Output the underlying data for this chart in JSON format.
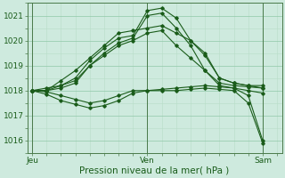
{
  "bg_color": "#ceeade",
  "line_color": "#1a5c1a",
  "title": "Pression niveau de la mer( hPa )",
  "xlabel_day_labels": [
    "Jeu",
    "Ven",
    "Sam"
  ],
  "xlabel_day_positions": [
    0,
    24,
    48
  ],
  "ylim": [
    1015.5,
    1021.5
  ],
  "yticks": [
    1016,
    1017,
    1018,
    1019,
    1020,
    1021
  ],
  "xlim": [
    -1,
    52
  ],
  "lines": [
    {
      "x": [
        0,
        3,
        6,
        9,
        12,
        15,
        18,
        21,
        24,
        27,
        30,
        33,
        36,
        39,
        42,
        45,
        48
      ],
      "y": [
        1018.0,
        1018.1,
        1018.2,
        1018.5,
        1019.2,
        1019.7,
        1020.1,
        1020.2,
        1021.2,
        1021.3,
        1020.9,
        1020.0,
        1019.4,
        1018.5,
        1018.3,
        1018.2,
        1018.1
      ]
    },
    {
      "x": [
        0,
        3,
        6,
        9,
        12,
        15,
        18,
        21,
        24,
        27,
        30,
        33,
        36,
        39,
        42,
        45,
        48
      ],
      "y": [
        1018.0,
        1018.0,
        1018.1,
        1018.3,
        1019.0,
        1019.5,
        1019.9,
        1020.1,
        1021.0,
        1021.1,
        1020.5,
        1019.8,
        1018.8,
        1018.2,
        1018.1,
        1018.0,
        1017.9
      ]
    },
    {
      "x": [
        0,
        3,
        6,
        9,
        12,
        15,
        18,
        21,
        24,
        27,
        30,
        33,
        36,
        39,
        42,
        45,
        48
      ],
      "y": [
        1018.0,
        1017.95,
        1017.8,
        1017.65,
        1017.5,
        1017.6,
        1017.8,
        1018.0,
        1018.0,
        1018.05,
        1018.1,
        1018.15,
        1018.2,
        1018.15,
        1018.1,
        1017.8,
        1016.0
      ]
    },
    {
      "x": [
        0,
        3,
        6,
        9,
        12,
        15,
        18,
        21,
        24,
        27,
        30,
        33,
        36,
        39,
        42,
        45,
        48
      ],
      "y": [
        1018.0,
        1017.85,
        1017.6,
        1017.45,
        1017.3,
        1017.4,
        1017.6,
        1017.9,
        1018.0,
        1018.0,
        1018.0,
        1018.05,
        1018.1,
        1018.05,
        1018.0,
        1017.5,
        1015.9
      ]
    },
    {
      "x": [
        0,
        3,
        6,
        9,
        12,
        15,
        18,
        21,
        24,
        27,
        30,
        33,
        36,
        39,
        42,
        45,
        48
      ],
      "y": [
        1018.0,
        1018.0,
        1018.4,
        1018.8,
        1019.3,
        1019.8,
        1020.3,
        1020.4,
        1020.5,
        1020.6,
        1020.3,
        1020.0,
        1019.5,
        1018.5,
        1018.3,
        1018.2,
        1018.2
      ]
    },
    {
      "x": [
        0,
        3,
        6,
        9,
        12,
        15,
        18,
        21,
        24,
        27,
        30,
        33,
        36,
        39,
        42,
        45,
        48
      ],
      "y": [
        1018.0,
        1018.0,
        1018.2,
        1018.4,
        1019.0,
        1019.4,
        1019.8,
        1020.0,
        1020.3,
        1020.4,
        1019.8,
        1019.3,
        1018.8,
        1018.3,
        1018.2,
        1018.15,
        1018.1
      ]
    }
  ]
}
